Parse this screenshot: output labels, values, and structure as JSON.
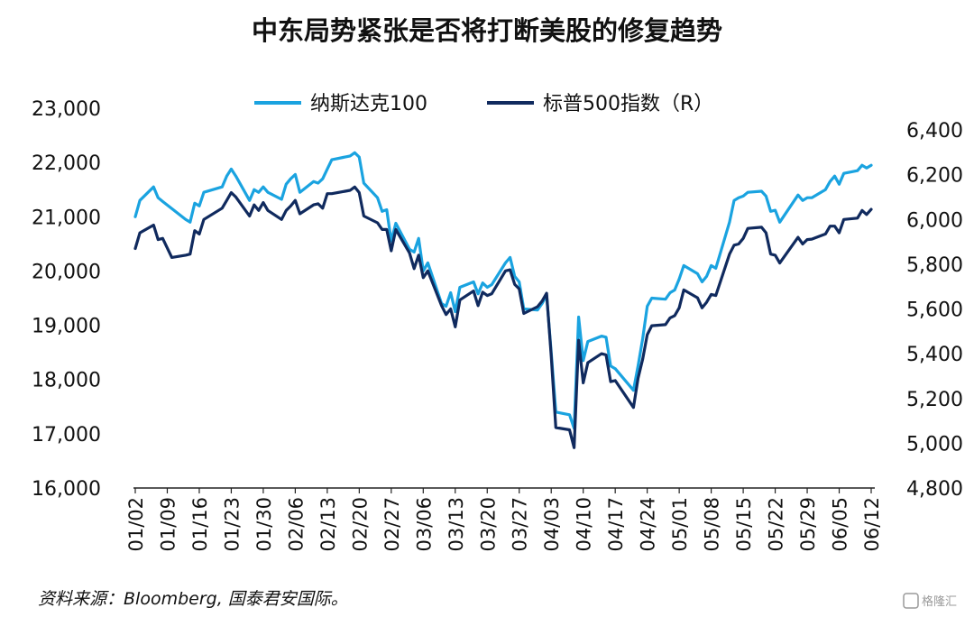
{
  "chart_data": {
    "type": "line",
    "title": "中东局势紧张是否将打断美股的修复趋势",
    "source_note": "资料来源：Bloomberg, 国泰君安国际。",
    "watermark": "格隆汇",
    "left_axis": {
      "ylim": [
        16000,
        23000
      ],
      "tick_labels": [
        "16,000",
        "17,000",
        "18,000",
        "19,000",
        "20,000",
        "21,000",
        "22,000",
        "23,000"
      ],
      "tick_values": [
        16000,
        17000,
        18000,
        19000,
        20000,
        21000,
        22000,
        23000
      ]
    },
    "right_axis": {
      "ylim": [
        4800,
        6400
      ],
      "tick_labels": [
        "4,800",
        "5,000",
        "5,200",
        "5,400",
        "5,600",
        "5,800",
        "6,000",
        "6,200",
        "6,400"
      ],
      "tick_values": [
        4800,
        5000,
        5200,
        5400,
        5600,
        5800,
        6000,
        6200,
        6400
      ]
    },
    "x_axis": {
      "date_range": [
        "2025-01-02",
        "2025-06-12"
      ],
      "tick_labels": [
        "01/02",
        "01/09",
        "01/16",
        "01/23",
        "01/30",
        "02/06",
        "02/13",
        "02/20",
        "02/27",
        "03/06",
        "03/13",
        "03/20",
        "03/27",
        "04/03",
        "04/10",
        "04/17",
        "04/24",
        "05/01",
        "05/08",
        "05/15",
        "05/22",
        "05/29",
        "06/05",
        "06/12"
      ]
    },
    "legend_position": "top-center",
    "grid": false,
    "series": [
      {
        "name": "纳斯达克100",
        "axis": "left",
        "color": "#1aa3e0",
        "points": [
          [
            "2025-01-02",
            21000
          ],
          [
            "2025-01-03",
            21300
          ],
          [
            "2025-01-06",
            21550
          ],
          [
            "2025-01-07",
            21350
          ],
          [
            "2025-01-08",
            21280
          ],
          [
            "2025-01-10",
            21150
          ],
          [
            "2025-01-13",
            20950
          ],
          [
            "2025-01-14",
            20900
          ],
          [
            "2025-01-15",
            21250
          ],
          [
            "2025-01-16",
            21200
          ],
          [
            "2025-01-17",
            21450
          ],
          [
            "2025-01-21",
            21550
          ],
          [
            "2025-01-22",
            21750
          ],
          [
            "2025-01-23",
            21880
          ],
          [
            "2025-01-24",
            21750
          ],
          [
            "2025-01-27",
            21300
          ],
          [
            "2025-01-28",
            21500
          ],
          [
            "2025-01-29",
            21450
          ],
          [
            "2025-01-30",
            21550
          ],
          [
            "2025-01-31",
            21450
          ],
          [
            "2025-02-03",
            21320
          ],
          [
            "2025-02-04",
            21600
          ],
          [
            "2025-02-05",
            21700
          ],
          [
            "2025-02-06",
            21780
          ],
          [
            "2025-02-07",
            21450
          ],
          [
            "2025-02-10",
            21650
          ],
          [
            "2025-02-11",
            21620
          ],
          [
            "2025-02-12",
            21700
          ],
          [
            "2025-02-13",
            21880
          ],
          [
            "2025-02-14",
            22050
          ],
          [
            "2025-02-18",
            22120
          ],
          [
            "2025-02-19",
            22180
          ],
          [
            "2025-02-20",
            22100
          ],
          [
            "2025-02-21",
            21620
          ],
          [
            "2025-02-24",
            21350
          ],
          [
            "2025-02-25",
            21100
          ],
          [
            "2025-02-26",
            21130
          ],
          [
            "2025-02-27",
            20550
          ],
          [
            "2025-02-28",
            20880
          ],
          [
            "2025-03-03",
            20400
          ],
          [
            "2025-03-04",
            20350
          ],
          [
            "2025-03-05",
            20600
          ],
          [
            "2025-03-06",
            20000
          ],
          [
            "2025-03-07",
            20150
          ],
          [
            "2025-03-10",
            19400
          ],
          [
            "2025-03-11",
            19350
          ],
          [
            "2025-03-12",
            19600
          ],
          [
            "2025-03-13",
            19250
          ],
          [
            "2025-03-14",
            19700
          ],
          [
            "2025-03-17",
            19800
          ],
          [
            "2025-03-18",
            19580
          ],
          [
            "2025-03-19",
            19780
          ],
          [
            "2025-03-20",
            19700
          ],
          [
            "2025-03-21",
            19750
          ],
          [
            "2025-03-24",
            20150
          ],
          [
            "2025-03-25",
            20250
          ],
          [
            "2025-03-26",
            19900
          ],
          [
            "2025-03-27",
            19800
          ],
          [
            "2025-03-28",
            19300
          ],
          [
            "2025-03-31",
            19280
          ],
          [
            "2025-04-01",
            19400
          ],
          [
            "2025-04-02",
            19550
          ],
          [
            "2025-04-03",
            18500
          ],
          [
            "2025-04-04",
            17400
          ],
          [
            "2025-04-07",
            17350
          ],
          [
            "2025-04-08",
            17100
          ],
          [
            "2025-04-09",
            19150
          ],
          [
            "2025-04-10",
            18350
          ],
          [
            "2025-04-11",
            18700
          ],
          [
            "2025-04-14",
            18800
          ],
          [
            "2025-04-15",
            18780
          ],
          [
            "2025-04-16",
            18250
          ],
          [
            "2025-04-17",
            18200
          ],
          [
            "2025-04-21",
            17800
          ],
          [
            "2025-04-22",
            18250
          ],
          [
            "2025-04-23",
            18750
          ],
          [
            "2025-04-24",
            19350
          ],
          [
            "2025-04-25",
            19500
          ],
          [
            "2025-04-28",
            19480
          ],
          [
            "2025-04-29",
            19600
          ],
          [
            "2025-04-30",
            19650
          ],
          [
            "2025-05-01",
            19850
          ],
          [
            "2025-05-02",
            20100
          ],
          [
            "2025-05-05",
            19950
          ],
          [
            "2025-05-06",
            19800
          ],
          [
            "2025-05-07",
            19900
          ],
          [
            "2025-05-08",
            20100
          ],
          [
            "2025-05-09",
            20050
          ],
          [
            "2025-05-12",
            20900
          ],
          [
            "2025-05-13",
            21300
          ],
          [
            "2025-05-14",
            21350
          ],
          [
            "2025-05-15",
            21380
          ],
          [
            "2025-05-16",
            21450
          ],
          [
            "2025-05-19",
            21470
          ],
          [
            "2025-05-20",
            21380
          ],
          [
            "2025-05-21",
            21100
          ],
          [
            "2025-05-22",
            21120
          ],
          [
            "2025-05-23",
            20900
          ],
          [
            "2025-05-27",
            21400
          ],
          [
            "2025-05-28",
            21300
          ],
          [
            "2025-05-29",
            21350
          ],
          [
            "2025-05-30",
            21350
          ],
          [
            "2025-06-02",
            21500
          ],
          [
            "2025-06-03",
            21650
          ],
          [
            "2025-06-04",
            21750
          ],
          [
            "2025-06-05",
            21600
          ],
          [
            "2025-06-06",
            21800
          ],
          [
            "2025-06-09",
            21850
          ],
          [
            "2025-06-10",
            21950
          ],
          [
            "2025-06-11",
            21900
          ],
          [
            "2025-06-12",
            21950
          ]
        ]
      },
      {
        "name": "标普500指数（R）",
        "axis": "right",
        "color": "#102a5e",
        "points": [
          [
            "2025-01-02",
            5870
          ],
          [
            "2025-01-03",
            5940
          ],
          [
            "2025-01-06",
            5975
          ],
          [
            "2025-01-07",
            5910
          ],
          [
            "2025-01-08",
            5915
          ],
          [
            "2025-01-10",
            5830
          ],
          [
            "2025-01-13",
            5840
          ],
          [
            "2025-01-14",
            5845
          ],
          [
            "2025-01-15",
            5950
          ],
          [
            "2025-01-16",
            5935
          ],
          [
            "2025-01-17",
            6000
          ],
          [
            "2025-01-21",
            6050
          ],
          [
            "2025-01-22",
            6085
          ],
          [
            "2025-01-23",
            6120
          ],
          [
            "2025-01-24",
            6100
          ],
          [
            "2025-01-27",
            6015
          ],
          [
            "2025-01-28",
            6065
          ],
          [
            "2025-01-29",
            6040
          ],
          [
            "2025-01-30",
            6075
          ],
          [
            "2025-01-31",
            6040
          ],
          [
            "2025-02-03",
            6000
          ],
          [
            "2025-02-04",
            6040
          ],
          [
            "2025-02-05",
            6060
          ],
          [
            "2025-02-06",
            6085
          ],
          [
            "2025-02-07",
            6025
          ],
          [
            "2025-02-10",
            6065
          ],
          [
            "2025-02-11",
            6070
          ],
          [
            "2025-02-12",
            6050
          ],
          [
            "2025-02-13",
            6115
          ],
          [
            "2025-02-14",
            6115
          ],
          [
            "2025-02-18",
            6130
          ],
          [
            "2025-02-19",
            6145
          ],
          [
            "2025-02-20",
            6120
          ],
          [
            "2025-02-21",
            6015
          ],
          [
            "2025-02-24",
            5985
          ],
          [
            "2025-02-25",
            5955
          ],
          [
            "2025-02-26",
            5955
          ],
          [
            "2025-02-27",
            5860
          ],
          [
            "2025-02-28",
            5955
          ],
          [
            "2025-03-03",
            5850
          ],
          [
            "2025-03-04",
            5780
          ],
          [
            "2025-03-05",
            5840
          ],
          [
            "2025-03-06",
            5740
          ],
          [
            "2025-03-07",
            5770
          ],
          [
            "2025-03-10",
            5615
          ],
          [
            "2025-03-11",
            5575
          ],
          [
            "2025-03-12",
            5600
          ],
          [
            "2025-03-13",
            5520
          ],
          [
            "2025-03-14",
            5640
          ],
          [
            "2025-03-17",
            5680
          ],
          [
            "2025-03-18",
            5615
          ],
          [
            "2025-03-19",
            5675
          ],
          [
            "2025-03-20",
            5660
          ],
          [
            "2025-03-21",
            5668
          ],
          [
            "2025-03-24",
            5770
          ],
          [
            "2025-03-25",
            5775
          ],
          [
            "2025-03-26",
            5710
          ],
          [
            "2025-03-27",
            5690
          ],
          [
            "2025-03-28",
            5580
          ],
          [
            "2025-03-31",
            5610
          ],
          [
            "2025-04-01",
            5635
          ],
          [
            "2025-04-02",
            5670
          ],
          [
            "2025-04-03",
            5390
          ],
          [
            "2025-04-04",
            5070
          ],
          [
            "2025-04-07",
            5060
          ],
          [
            "2025-04-08",
            4980
          ],
          [
            "2025-04-09",
            5460
          ],
          [
            "2025-04-10",
            5270
          ],
          [
            "2025-04-11",
            5360
          ],
          [
            "2025-04-14",
            5400
          ],
          [
            "2025-04-15",
            5395
          ],
          [
            "2025-04-16",
            5275
          ],
          [
            "2025-04-17",
            5280
          ],
          [
            "2025-04-21",
            5160
          ],
          [
            "2025-04-22",
            5290
          ],
          [
            "2025-04-23",
            5375
          ],
          [
            "2025-04-24",
            5485
          ],
          [
            "2025-04-25",
            5525
          ],
          [
            "2025-04-28",
            5530
          ],
          [
            "2025-04-29",
            5560
          ],
          [
            "2025-04-30",
            5570
          ],
          [
            "2025-05-01",
            5605
          ],
          [
            "2025-05-02",
            5685
          ],
          [
            "2025-05-05",
            5650
          ],
          [
            "2025-05-06",
            5605
          ],
          [
            "2025-05-07",
            5630
          ],
          [
            "2025-05-08",
            5665
          ],
          [
            "2025-05-09",
            5660
          ],
          [
            "2025-05-12",
            5845
          ],
          [
            "2025-05-13",
            5885
          ],
          [
            "2025-05-14",
            5890
          ],
          [
            "2025-05-15",
            5915
          ],
          [
            "2025-05-16",
            5960
          ],
          [
            "2025-05-19",
            5965
          ],
          [
            "2025-05-20",
            5940
          ],
          [
            "2025-05-21",
            5845
          ],
          [
            "2025-05-22",
            5840
          ],
          [
            "2025-05-23",
            5805
          ],
          [
            "2025-05-27",
            5920
          ],
          [
            "2025-05-28",
            5890
          ],
          [
            "2025-05-29",
            5910
          ],
          [
            "2025-05-30",
            5912
          ],
          [
            "2025-06-02",
            5935
          ],
          [
            "2025-06-03",
            5970
          ],
          [
            "2025-06-04",
            5970
          ],
          [
            "2025-06-05",
            5940
          ],
          [
            "2025-06-06",
            6000
          ],
          [
            "2025-06-09",
            6006
          ],
          [
            "2025-06-10",
            6040
          ],
          [
            "2025-06-11",
            6022
          ],
          [
            "2025-06-12",
            6045
          ]
        ]
      }
    ]
  }
}
